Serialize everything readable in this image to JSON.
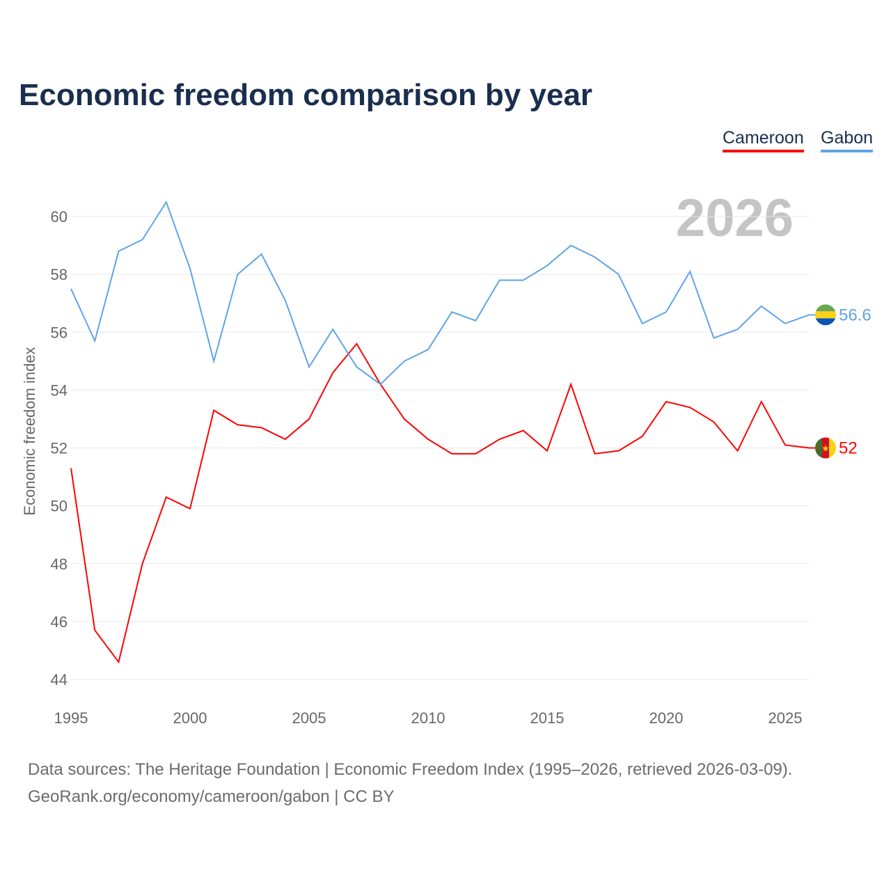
{
  "chart_data": {
    "type": "line",
    "title": "Economic freedom comparison by year",
    "xlabel": "",
    "ylabel": "Economic freedom index",
    "ylim": [
      44,
      60
    ],
    "xlim": [
      1995,
      2026
    ],
    "yticks": [
      44,
      46,
      48,
      50,
      52,
      54,
      56,
      58,
      60
    ],
    "xticks": [
      1995,
      2000,
      2005,
      2010,
      2015,
      2020,
      2025
    ],
    "grid": true,
    "legend_position": "top-right",
    "current_year_label": "2026",
    "x": [
      1995,
      1996,
      1997,
      1998,
      1999,
      2000,
      2001,
      2002,
      2003,
      2004,
      2005,
      2006,
      2007,
      2008,
      2009,
      2010,
      2011,
      2012,
      2013,
      2014,
      2015,
      2016,
      2017,
      2018,
      2019,
      2020,
      2021,
      2022,
      2023,
      2024,
      2025,
      2026
    ],
    "series": [
      {
        "name": "Cameroon",
        "color": "#ff0000",
        "end_label": "52",
        "flag": "cameroon-flag",
        "values": [
          51.3,
          45.7,
          44.6,
          48.0,
          50.3,
          49.9,
          53.3,
          52.8,
          52.7,
          52.3,
          53.0,
          54.6,
          55.6,
          54.2,
          53.0,
          52.3,
          51.8,
          51.8,
          52.3,
          52.6,
          51.9,
          54.2,
          51.8,
          51.9,
          52.4,
          53.6,
          53.4,
          52.9,
          51.9,
          53.6,
          52.1,
          52.0
        ]
      },
      {
        "name": "Gabon",
        "color": "#5fa3e8",
        "end_label": "56.6",
        "flag": "gabon-flag",
        "values": [
          57.5,
          55.7,
          58.8,
          59.2,
          60.5,
          58.2,
          55.0,
          58.0,
          58.7,
          57.1,
          54.8,
          56.1,
          54.8,
          54.2,
          55.0,
          55.4,
          56.7,
          56.4,
          57.8,
          57.8,
          58.3,
          59.0,
          58.6,
          58.0,
          56.3,
          56.7,
          58.1,
          55.8,
          56.1,
          56.9,
          56.3,
          56.6
        ]
      }
    ]
  },
  "source_line1": "Data sources: The Heritage Foundation | Economic Freedom Index (1995–2026, retrieved 2026-03-09).",
  "source_line2": "GeoRank.org/economy/cameroon/gabon | CC BY"
}
